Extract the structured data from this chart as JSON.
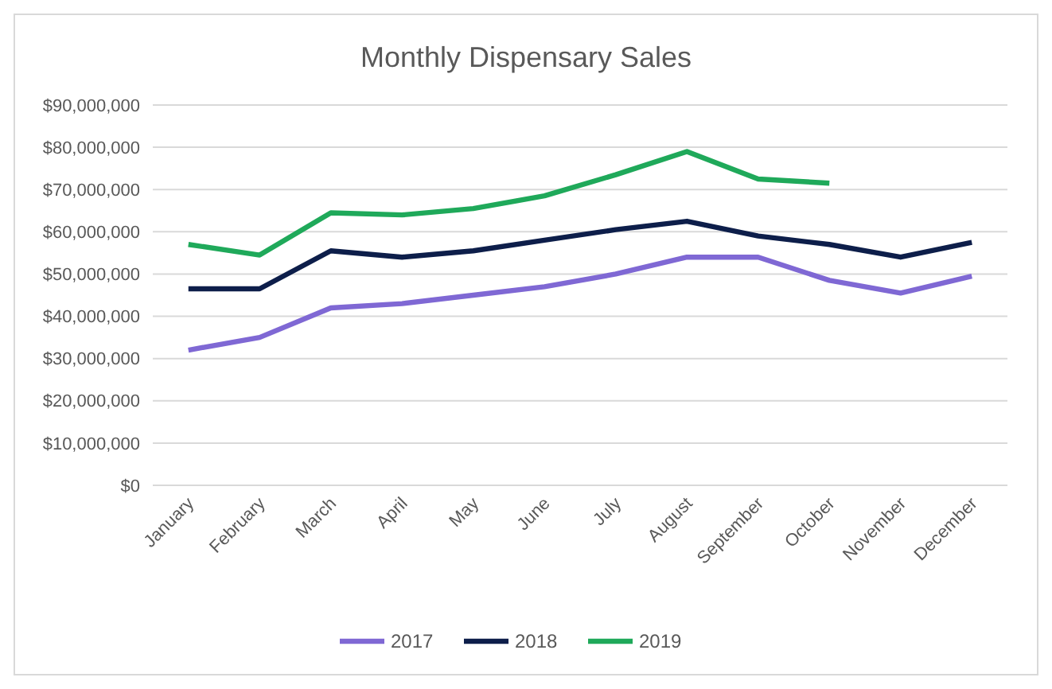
{
  "chart_data": {
    "type": "line",
    "title": "Monthly Dispensary Sales",
    "categories": [
      "January",
      "February",
      "March",
      "April",
      "May",
      "June",
      "July",
      "August",
      "September",
      "October",
      "November",
      "December"
    ],
    "series": [
      {
        "name": "2017",
        "color": "#7f68d4",
        "values": [
          32000000,
          35000000,
          42000000,
          43000000,
          45000000,
          47000000,
          50000000,
          54000000,
          54000000,
          48500000,
          45500000,
          49500000
        ]
      },
      {
        "name": "2018",
        "color": "#0d1e4a",
        "values": [
          46500000,
          46500000,
          55500000,
          54000000,
          55500000,
          58000000,
          60500000,
          62500000,
          59000000,
          57000000,
          54000000,
          57500000
        ]
      },
      {
        "name": "2019",
        "color": "#1fa95a",
        "values": [
          57000000,
          54500000,
          64500000,
          64000000,
          65500000,
          68500000,
          73500000,
          79000000,
          72500000,
          71500000,
          null,
          null
        ]
      }
    ],
    "ylim": [
      0,
      90000000
    ],
    "yticks": [
      {
        "value": 0,
        "label": "$0"
      },
      {
        "value": 10000000,
        "label": "$10,000,000"
      },
      {
        "value": 20000000,
        "label": "$20,000,000"
      },
      {
        "value": 30000000,
        "label": "$30,000,000"
      },
      {
        "value": 40000000,
        "label": "$40,000,000"
      },
      {
        "value": 50000000,
        "label": "$50,000,000"
      },
      {
        "value": 60000000,
        "label": "$60,000,000"
      },
      {
        "value": 70000000,
        "label": "$70,000,000"
      },
      {
        "value": 80000000,
        "label": "$80,000,000"
      },
      {
        "value": 90000000,
        "label": "$90,000,000"
      }
    ],
    "grid": "y",
    "legend": "bottom",
    "marker": "none",
    "line_style": "solid"
  }
}
